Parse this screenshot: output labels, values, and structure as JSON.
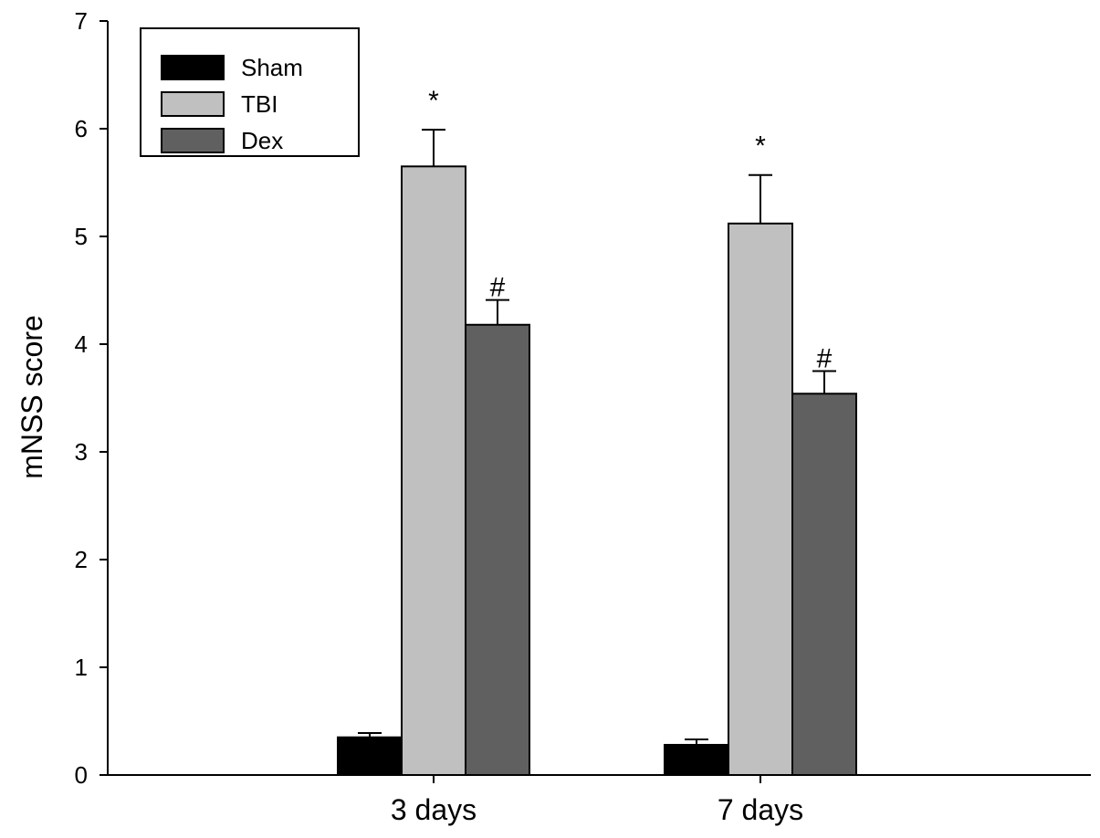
{
  "chart_data": {
    "type": "bar",
    "xlabel": "",
    "ylabel": "mNSS score",
    "ylim": [
      0,
      7
    ],
    "yticks": [
      "0",
      "1",
      "2",
      "3",
      "4",
      "5",
      "6",
      "7"
    ],
    "categories": [
      "3 days",
      "7 days"
    ],
    "series": [
      {
        "name": "Sham",
        "color": "#000000",
        "values": [
          0.35,
          0.28
        ],
        "errors": [
          0.04,
          0.05
        ],
        "annotations": [
          "",
          ""
        ]
      },
      {
        "name": "TBI",
        "color": "#c0c0c0",
        "values": [
          5.65,
          5.12
        ],
        "errors": [
          0.34,
          0.45
        ],
        "annotations": [
          "*",
          "*"
        ]
      },
      {
        "name": "Dex",
        "color": "#606060",
        "values": [
          4.18,
          3.54
        ],
        "errors": [
          0.23,
          0.21
        ],
        "annotations": [
          "#",
          "#"
        ]
      }
    ],
    "legend_position": "top-left",
    "grid": false
  }
}
